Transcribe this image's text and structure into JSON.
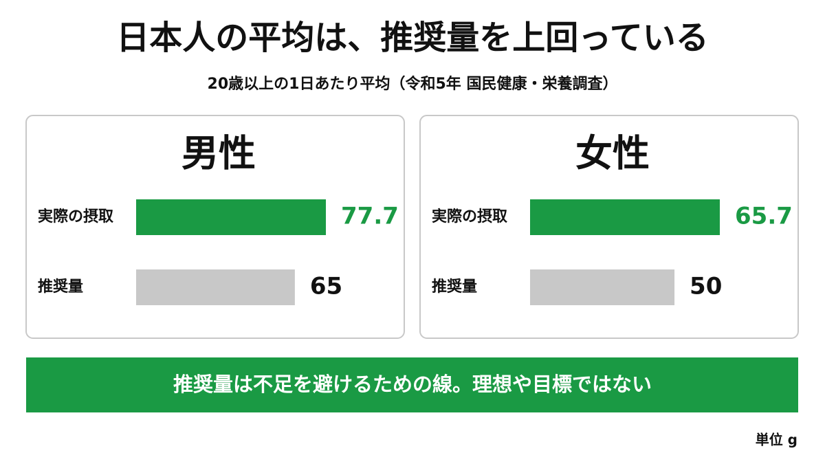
{
  "title": "日本人の平均は、推奨量を上回っている",
  "subtitle": "20歳以上の1日あたり平均（令和5年 国民健康・栄養調査）",
  "banner": "推奨量は不足を避けるための線。理想や目標ではない",
  "unit_note": "単位 g",
  "chart_data": [
    {
      "type": "bar",
      "title": "男性",
      "categories": [
        "実際の摂取",
        "推奨量"
      ],
      "values": [
        77.7,
        65
      ],
      "colors": [
        "#1a9a44",
        "#c8c8c8"
      ],
      "label_colors": [
        "#1a9a44",
        "#111111"
      ]
    },
    {
      "type": "bar",
      "title": "女性",
      "categories": [
        "実際の摂取",
        "推奨量"
      ],
      "values": [
        65.7,
        50
      ],
      "colors": [
        "#1a9a44",
        "#c8c8c8"
      ],
      "label_colors": [
        "#1a9a44",
        "#111111"
      ]
    }
  ]
}
